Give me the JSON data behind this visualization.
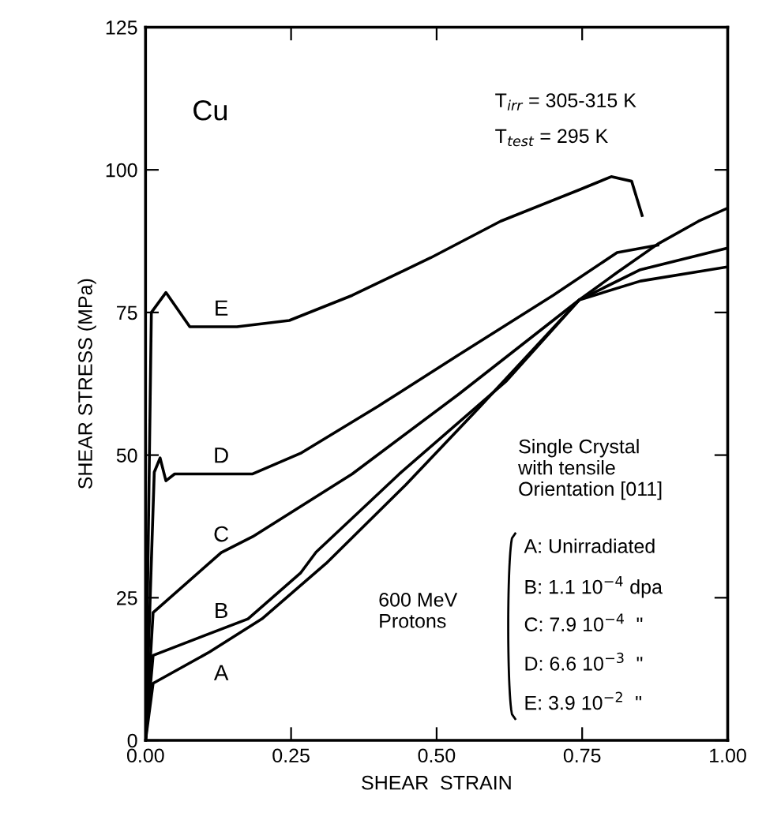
{
  "chart_data": {
    "type": "line",
    "xlabel": "SHEAR  STRAIN",
    "ylabel": "SHEAR STRESS (MPa)",
    "xlim": [
      0,
      1
    ],
    "ylim": [
      0,
      125
    ],
    "xticks": [
      {
        "value": 0,
        "label": "0.00"
      },
      {
        "value": 0.25,
        "label": "0.25"
      },
      {
        "value": 0.5,
        "label": "0.50"
      },
      {
        "value": 0.75,
        "label": "0.75"
      },
      {
        "value": 1,
        "label": "1.00"
      }
    ],
    "yticks": [
      0,
      25,
      50,
      75,
      100,
      125
    ],
    "grid": false,
    "legend": false,
    "marker": "none",
    "line_style": "solid",
    "series": [
      {
        "name": "A",
        "color": "#000000",
        "x": [
          0,
          0.013,
          0.11,
          0.2,
          0.31,
          0.447,
          0.57,
          0.745,
          0.81,
          0.88,
          0.95,
          1.0
        ],
        "values": [
          0,
          10,
          15.5,
          21.3,
          31,
          44.8,
          58,
          77.2,
          82,
          87,
          91,
          93.3
        ]
      },
      {
        "name": "B",
        "color": "#000000",
        "x": [
          0,
          0.013,
          0.176,
          0.266,
          0.293,
          0.436,
          0.62,
          0.745,
          0.85,
          1.0
        ],
        "values": [
          0,
          14.9,
          21.3,
          29.3,
          33,
          46.7,
          63,
          77.2,
          82.5,
          86.3
        ]
      },
      {
        "name": "C",
        "color": "#000000",
        "x": [
          0,
          0.013,
          0.13,
          0.184,
          0.355,
          0.537,
          0.745,
          0.85,
          1.0
        ],
        "values": [
          0,
          22.4,
          32.9,
          35.7,
          46.7,
          60.6,
          77.2,
          80.5,
          83
        ]
      },
      {
        "name": "D",
        "color": "#000000",
        "x": [
          0,
          0.015,
          0.025,
          0.035,
          0.05,
          0.184,
          0.266,
          0.4,
          0.537,
          0.7,
          0.81,
          0.88
        ],
        "values": [
          0,
          47,
          49.5,
          45.5,
          46.7,
          46.7,
          50.3,
          58.6,
          67.5,
          78,
          85.5,
          86.8
        ]
      },
      {
        "name": "E",
        "color": "#000000",
        "x": [
          0,
          0.01,
          0.035,
          0.076,
          0.157,
          0.247,
          0.355,
          0.49,
          0.61,
          0.745,
          0.8,
          0.835,
          0.853
        ],
        "values": [
          0,
          75,
          78.5,
          72.5,
          72.5,
          73.6,
          78,
          84.6,
          91,
          96.5,
          98.8,
          98,
          92
        ]
      }
    ],
    "annotations": [
      "Cu",
      "T$_{irr}$ = 305-315 K",
      "T$_{test}$ = 295 K",
      "Single Crystal\nwith tensile\nOrientation [011]",
      "600 MeV\nProtons",
      "A: Unirradiated",
      "B: 1.1 10$^{−4}$ dpa",
      "C: 7.9 10$^{−4}$  \"",
      "D: 6.6 10$^{−3}$  \"",
      "E: 3.9 10$^{−2}$  \""
    ]
  }
}
